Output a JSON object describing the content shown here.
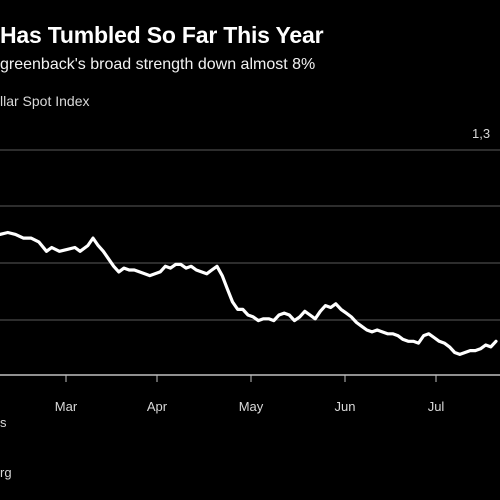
{
  "header": {
    "title": "Has Tumbled So Far This Year",
    "subtitle": "greenback's broad strength down almost 8%",
    "series_label": "llar Spot Index"
  },
  "footer": {
    "note_a": "s",
    "note_b": "rg"
  },
  "colors": {
    "background": "#000000",
    "line": "#ffffff",
    "grid": "#5a5a5a",
    "text": "#ffffff"
  },
  "chart_data": {
    "type": "line",
    "title": "Has Tumbled So Far This Year",
    "subtitle": "greenback's broad strength down almost 8%",
    "ylabel": "llar Spot Index",
    "y_tick_labels": [
      "1,3"
    ],
    "x_tick_labels": [
      "Mar",
      "Apr",
      "May",
      "Jun",
      "Jul"
    ],
    "ylim": [
      1180,
      1300
    ],
    "grid": true,
    "series": [
      {
        "values": [
          [
            0,
            1255
          ],
          [
            3,
            1256
          ],
          [
            6,
            1255
          ],
          [
            9,
            1253
          ],
          [
            12,
            1253
          ],
          [
            15,
            1251
          ],
          [
            18,
            1246
          ],
          [
            20,
            1248
          ],
          [
            23,
            1246
          ],
          [
            26,
            1247
          ],
          [
            29,
            1248
          ],
          [
            31,
            1246
          ],
          [
            34,
            1249
          ],
          [
            36,
            1253
          ],
          [
            38,
            1249
          ],
          [
            40,
            1246
          ],
          [
            42,
            1242
          ],
          [
            44,
            1238
          ],
          [
            46,
            1235
          ],
          [
            48,
            1237
          ],
          [
            50,
            1236
          ],
          [
            52,
            1236
          ],
          [
            54,
            1235
          ],
          [
            56,
            1234
          ],
          [
            58,
            1233
          ],
          [
            60,
            1234
          ],
          [
            62,
            1235
          ],
          [
            64,
            1238
          ],
          [
            66,
            1237
          ],
          [
            68,
            1239
          ],
          [
            70,
            1239
          ],
          [
            72,
            1237
          ],
          [
            74,
            1238
          ],
          [
            76,
            1236
          ],
          [
            78,
            1235
          ],
          [
            80,
            1234
          ],
          [
            82,
            1236
          ],
          [
            84,
            1238
          ],
          [
            86,
            1233
          ],
          [
            88,
            1226
          ],
          [
            90,
            1219
          ],
          [
            92,
            1215
          ],
          [
            94,
            1215
          ],
          [
            96,
            1212
          ],
          [
            98,
            1211
          ],
          [
            100,
            1209
          ],
          [
            102,
            1210
          ],
          [
            104,
            1210
          ],
          [
            106,
            1209
          ],
          [
            108,
            1212
          ],
          [
            110,
            1213
          ],
          [
            112,
            1212
          ],
          [
            114,
            1209
          ],
          [
            116,
            1211
          ],
          [
            118,
            1214
          ],
          [
            120,
            1212
          ],
          [
            122,
            1210
          ],
          [
            124,
            1214
          ],
          [
            126,
            1217
          ],
          [
            128,
            1216
          ],
          [
            130,
            1218
          ],
          [
            132,
            1215
          ],
          [
            134,
            1213
          ],
          [
            136,
            1211
          ],
          [
            138,
            1208
          ],
          [
            140,
            1206
          ],
          [
            142,
            1204
          ],
          [
            144,
            1203
          ],
          [
            146,
            1204
          ],
          [
            148,
            1203
          ],
          [
            150,
            1202
          ],
          [
            152,
            1202
          ],
          [
            154,
            1201
          ],
          [
            156,
            1199
          ],
          [
            158,
            1198
          ],
          [
            160,
            1198
          ],
          [
            162,
            1197
          ],
          [
            164,
            1201
          ],
          [
            166,
            1202
          ],
          [
            168,
            1200
          ],
          [
            170,
            1198
          ],
          [
            172,
            1197
          ],
          [
            174,
            1195
          ],
          [
            176,
            1192
          ],
          [
            178,
            1191
          ],
          [
            180,
            1192
          ],
          [
            182,
            1193
          ],
          [
            184,
            1193
          ],
          [
            186,
            1194
          ],
          [
            188,
            1196
          ],
          [
            190,
            1195
          ],
          [
            192,
            1198
          ]
        ]
      }
    ]
  }
}
